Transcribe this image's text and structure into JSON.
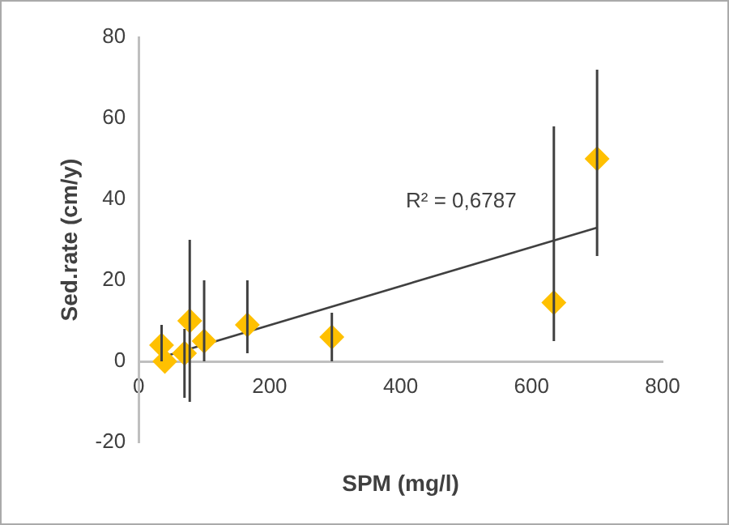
{
  "chart_data": {
    "type": "scatter",
    "xlabel": "SPM (mg/l)",
    "ylabel": "Sed.rate (cm/y)",
    "xlim": [
      0,
      800
    ],
    "xticks": [
      0,
      200,
      400,
      600,
      800
    ],
    "ylim": [
      -20,
      80
    ],
    "yticks": [
      -20,
      0,
      20,
      40,
      60,
      80
    ],
    "grid": false,
    "legend": false,
    "marker": "diamond",
    "series": [
      {
        "color": "#ffc000",
        "x": [
          35,
          40,
          70,
          78,
          100,
          166,
          295,
          634,
          700
        ],
        "values": [
          4,
          0,
          2,
          10,
          5,
          9,
          6,
          14.5,
          50
        ],
        "errors": [
          [
            0,
            9
          ],
          null,
          [
            -9,
            8
          ],
          [
            -10,
            30
          ],
          [
            0,
            20
          ],
          [
            2,
            20
          ],
          [
            0,
            12
          ],
          [
            5,
            58
          ],
          [
            26,
            72
          ]
        ]
      },
      {
        "type": "line",
        "color": "#404040",
        "x": [
          35,
          700
        ],
        "values": [
          1,
          33
        ],
        "marker": "none"
      }
    ],
    "annotations": [
      "R² = 0,6787"
    ]
  }
}
